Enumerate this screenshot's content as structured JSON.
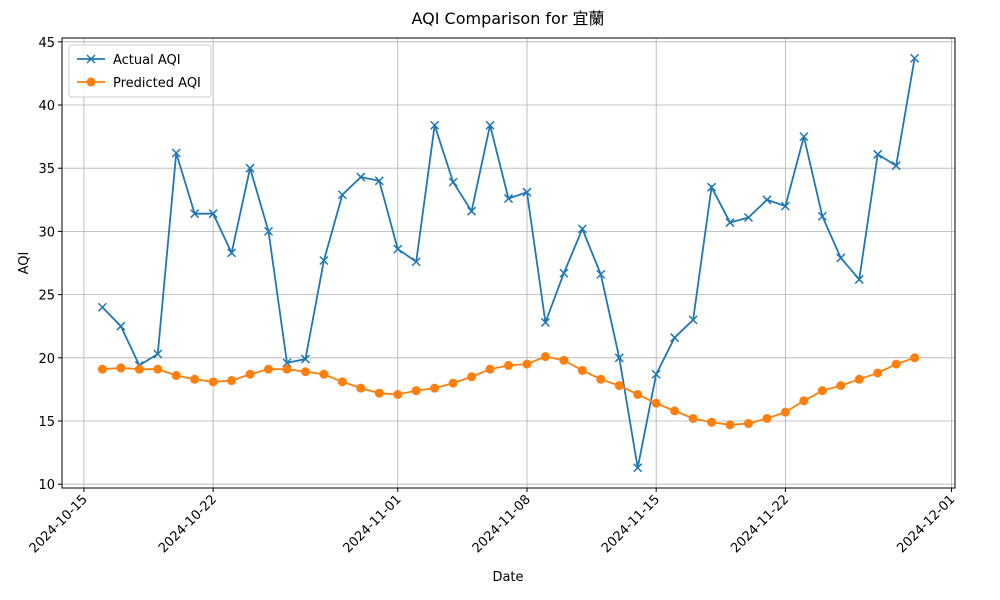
{
  "chart_data": {
    "type": "line",
    "title": "AQI Comparison for 宜蘭",
    "x_label": "Date",
    "y_label": "AQI",
    "x": [
      "2024-10-16",
      "2024-10-17",
      "2024-10-18",
      "2024-10-19",
      "2024-10-20",
      "2024-10-21",
      "2024-10-22",
      "2024-10-23",
      "2024-10-24",
      "2024-10-25",
      "2024-10-26",
      "2024-10-27",
      "2024-10-28",
      "2024-10-29",
      "2024-10-30",
      "2024-10-31",
      "2024-11-01",
      "2024-11-02",
      "2024-11-03",
      "2024-11-04",
      "2024-11-05",
      "2024-11-06",
      "2024-11-07",
      "2024-11-08",
      "2024-11-09",
      "2024-11-10",
      "2024-11-11",
      "2024-11-12",
      "2024-11-13",
      "2024-11-14",
      "2024-11-15",
      "2024-11-16",
      "2024-11-17",
      "2024-11-18",
      "2024-11-19",
      "2024-11-20",
      "2024-11-21",
      "2024-11-22",
      "2024-11-23",
      "2024-11-24",
      "2024-11-25",
      "2024-11-26",
      "2024-11-27",
      "2024-11-28",
      "2024-11-29"
    ],
    "series": [
      {
        "name": "Actual AQI",
        "color": "#1f77b4",
        "marker": "x",
        "values": [
          24.0,
          22.5,
          19.4,
          20.3,
          36.2,
          31.4,
          31.4,
          28.3,
          35.0,
          30.0,
          19.6,
          19.9,
          27.7,
          32.9,
          34.3,
          34.0,
          28.6,
          27.6,
          38.4,
          33.9,
          31.6,
          38.4,
          32.6,
          33.1,
          22.8,
          26.7,
          30.2,
          26.6,
          20.0,
          11.3,
          18.7,
          21.6,
          23.0,
          33.5,
          30.7,
          31.1,
          32.5,
          32.0,
          37.5,
          31.2,
          27.9,
          26.2,
          36.1,
          35.2,
          43.7
        ]
      },
      {
        "name": "Predicted AQI",
        "color": "#ff7f0e",
        "marker": "o",
        "values": [
          19.1,
          19.2,
          19.1,
          19.1,
          18.6,
          18.3,
          18.1,
          18.2,
          18.7,
          19.1,
          19.1,
          18.9,
          18.7,
          18.1,
          17.6,
          17.2,
          17.1,
          17.4,
          17.6,
          18.0,
          18.5,
          19.1,
          19.4,
          19.5,
          20.1,
          19.8,
          19.0,
          18.3,
          17.8,
          17.1,
          16.4,
          15.8,
          15.2,
          14.9,
          14.7,
          14.8,
          15.2,
          15.7,
          16.6,
          17.4,
          17.8,
          18.3,
          18.8,
          19.5,
          20.0
        ]
      }
    ],
    "xlim": [
      "2024-10-13T19:30",
      "2024-12-01T04:30"
    ],
    "xticks": [
      "2024-10-15",
      "2024-10-22",
      "2024-11-01",
      "2024-11-08",
      "2024-11-15",
      "2024-11-22",
      "2024-12-01"
    ],
    "ylim": [
      9.7,
      45.3
    ],
    "yticks": [
      10,
      15,
      20,
      25,
      30,
      35,
      40,
      45
    ],
    "grid": true,
    "legend": "upper left"
  }
}
